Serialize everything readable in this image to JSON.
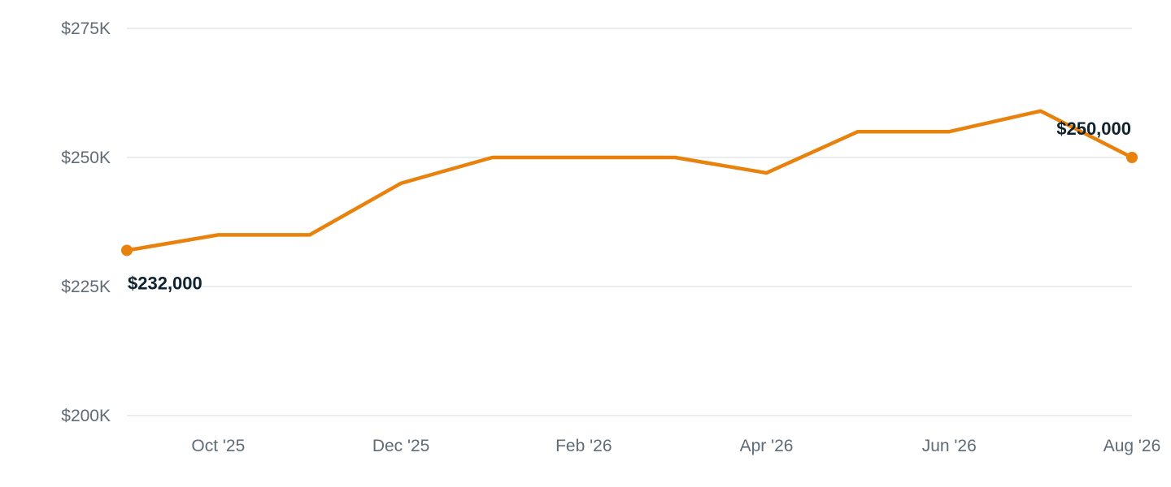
{
  "chart_data": {
    "type": "line",
    "title": "",
    "xlabel": "",
    "ylabel": "",
    "x": [
      "2025-09",
      "2025-10",
      "2025-11",
      "2025-12",
      "2026-01",
      "2026-02",
      "2026-03",
      "2026-04",
      "2026-05",
      "2026-06",
      "2026-07",
      "2026-08"
    ],
    "series": [
      {
        "values": [
          232000,
          235000,
          235000,
          245000,
          250000,
          250000,
          250000,
          247000,
          255000,
          255000,
          259000,
          250000
        ],
        "color": "#e8820c"
      }
    ],
    "ylim": [
      200000,
      275000
    ],
    "y_ticks": [
      {
        "value": 200000,
        "label": "$200K"
      },
      {
        "value": 225000,
        "label": "$225K"
      },
      {
        "value": 250000,
        "label": "$250K"
      },
      {
        "value": 275000,
        "label": "$275K"
      }
    ],
    "x_ticks": [
      {
        "x": "2025-10",
        "label": "Oct '25"
      },
      {
        "x": "2025-12",
        "label": "Dec '25"
      },
      {
        "x": "2026-02",
        "label": "Feb '26"
      },
      {
        "x": "2026-04",
        "label": "Apr '26"
      },
      {
        "x": "2026-06",
        "label": "Jun '26"
      },
      {
        "x": "2026-08",
        "label": "Aug '26"
      }
    ],
    "annotations": [
      {
        "x": "2025-09",
        "label": "$232,000",
        "placement": "below-right"
      },
      {
        "x": "2026-08",
        "label": "$250,000",
        "placement": "above-left"
      }
    ],
    "grid": true,
    "gridline_color": "#e3e7ec",
    "tick_color": "#5f6b76",
    "label_color": "#0f2230"
  }
}
